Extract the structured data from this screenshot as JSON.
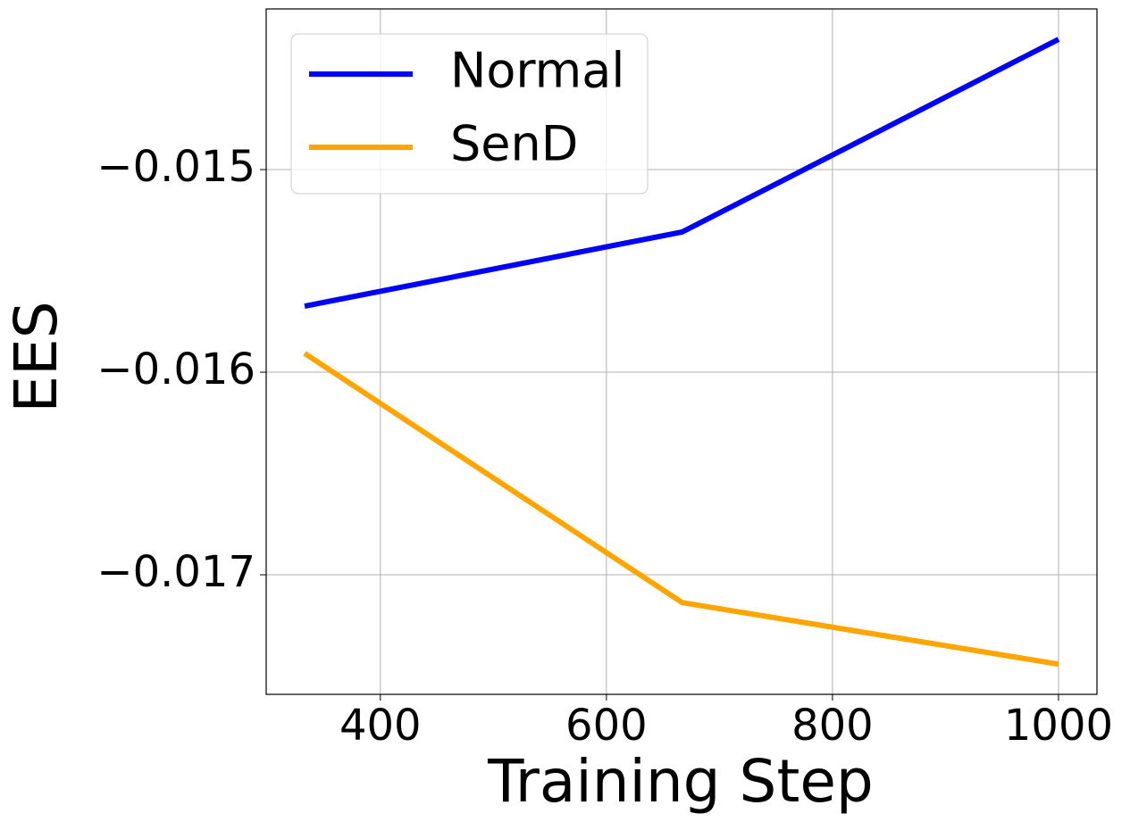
{
  "chart_data": {
    "type": "line",
    "x_label": "Training Step",
    "y_label": "EES",
    "x": [
      333,
      667,
      1000
    ],
    "series": [
      {
        "name": "Normal",
        "color": "#0000ff",
        "values": [
          -0.015674,
          -0.015308,
          -0.014357
        ]
      },
      {
        "name": "SenD",
        "color": "#ffa500",
        "values": [
          -0.015907,
          -0.017137,
          -0.017441
        ]
      }
    ],
    "xlim": [
      299,
      1034
    ],
    "xticks": [
      400,
      600,
      800,
      1000
    ],
    "ylim": [
      -0.01759,
      -0.014207
    ],
    "yticks": [
      {
        "value": -0.017,
        "label": "−0.017"
      },
      {
        "value": -0.016,
        "label": "−0.016"
      },
      {
        "value": -0.015,
        "label": "−0.015"
      }
    ],
    "grid": true,
    "legend": "upper left"
  }
}
